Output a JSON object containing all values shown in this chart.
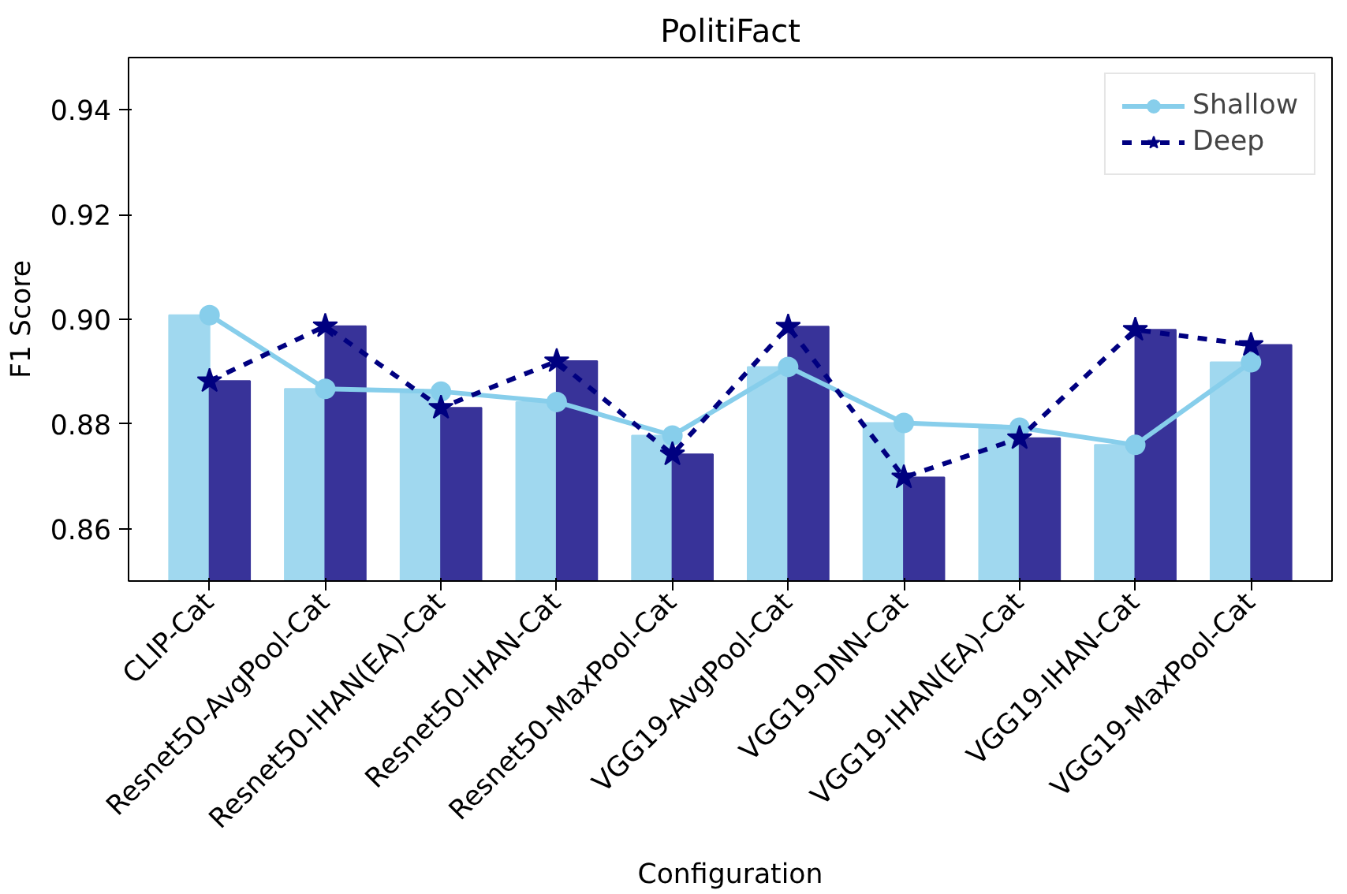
{
  "chart_data": {
    "type": "bar",
    "title": "PolitiFact",
    "xlabel": "Configuration",
    "ylabel": "F1 Score",
    "categories": [
      "CLIP-Cat",
      "Resnet50-AvgPool-Cat",
      "Resnet50-IHAN(EA)-Cat",
      "Resnet50-IHAN-Cat",
      "Resnet50-MaxPool-Cat",
      "VGG19-AvgPool-Cat",
      "VGG19-DNN-Cat",
      "VGG19-IHAN(EA)-Cat",
      "VGG19-IHAN-Cat",
      "VGG19-MaxPool-Cat"
    ],
    "series": [
      {
        "color": "#a0d8ef",
        "values": [
          0.9008,
          0.8867,
          0.8862,
          0.8842,
          0.8778,
          0.8909,
          0.8802,
          0.8793,
          0.876,
          0.8918
        ]
      },
      {
        "color": "#383399",
        "values": [
          0.8882,
          0.8987,
          0.8831,
          0.892,
          0.8742,
          0.8986,
          0.8698,
          0.8773,
          0.898,
          0.8951
        ]
      },
      {
        "type": "line",
        "name": "Shallow",
        "color": "#87ceeb",
        "marker": "circle",
        "line_style": "solid",
        "values": [
          0.9008,
          0.8867,
          0.8862,
          0.8842,
          0.8778,
          0.8909,
          0.8802,
          0.8793,
          0.876,
          0.8918
        ]
      },
      {
        "type": "line",
        "name": "Deep",
        "color": "#000080",
        "marker": "star",
        "line_style": "dashed",
        "values": [
          0.8882,
          0.8987,
          0.8831,
          0.892,
          0.8742,
          0.8986,
          0.8698,
          0.8773,
          0.898,
          0.8951
        ]
      }
    ],
    "ylim": [
      0.85,
      0.95
    ],
    "yticks": [
      0.86,
      0.88,
      {
        "value": 0.9,
        "label": "0.90"
      },
      0.92,
      0.94
    ],
    "grid": false,
    "legend": "top right"
  }
}
